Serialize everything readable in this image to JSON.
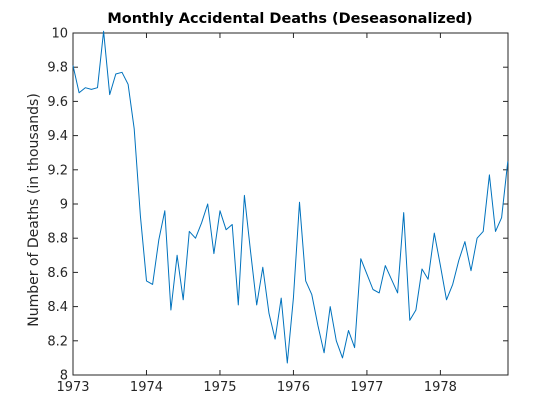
{
  "chart_data": {
    "type": "line",
    "title": "Monthly Accidental Deaths (Deseasonalized)",
    "xlabel": "",
    "ylabel": "Number of Deaths (in thousands)",
    "xlim": [
      1973.0,
      1978.92
    ],
    "ylim": [
      8,
      10
    ],
    "grid": false,
    "legend": "none",
    "x_ticks": [
      1973,
      1974,
      1975,
      1976,
      1977,
      1978
    ],
    "x_tick_labels": [
      "1973",
      "1974",
      "1975",
      "1976",
      "1977",
      "1978"
    ],
    "y_ticks": [
      8,
      8.2,
      8.4,
      8.6,
      8.8,
      9,
      9.2,
      9.4,
      9.6,
      9.8,
      10
    ],
    "y_tick_labels": [
      "8",
      "8.2",
      "8.4",
      "8.6",
      "8.8",
      "9",
      "9.2",
      "9.4",
      "9.6",
      "9.8",
      "10"
    ],
    "colors": {
      "series": "#0072BD",
      "axes": "#262626"
    },
    "series": [
      {
        "x": [
          1973.0,
          1973.083,
          1973.167,
          1973.25,
          1973.333,
          1973.417,
          1973.5,
          1973.583,
          1973.667,
          1973.75,
          1973.833,
          1973.917,
          1974.0,
          1974.083,
          1974.167,
          1974.25,
          1974.333,
          1974.417,
          1974.5,
          1974.583,
          1974.667,
          1974.75,
          1974.833,
          1974.917,
          1975.0,
          1975.083,
          1975.167,
          1975.25,
          1975.333,
          1975.417,
          1975.5,
          1975.583,
          1975.667,
          1975.75,
          1975.833,
          1975.917,
          1976.0,
          1976.083,
          1976.167,
          1976.25,
          1976.333,
          1976.417,
          1976.5,
          1976.583,
          1976.667,
          1976.75,
          1976.833,
          1976.917,
          1977.0,
          1977.083,
          1977.167,
          1977.25,
          1977.333,
          1977.417,
          1977.5,
          1977.583,
          1977.667,
          1977.75,
          1977.833,
          1977.917,
          1978.0,
          1978.083,
          1978.167,
          1978.25,
          1978.333,
          1978.417,
          1978.5,
          1978.583,
          1978.667,
          1978.75,
          1978.833,
          1978.917
        ],
        "values": [
          9.81,
          9.65,
          9.68,
          9.67,
          9.68,
          10.01,
          9.64,
          9.76,
          9.77,
          9.7,
          9.44,
          8.93,
          8.55,
          8.53,
          8.79,
          8.96,
          8.38,
          8.7,
          8.44,
          8.84,
          8.8,
          8.89,
          9.0,
          8.71,
          8.96,
          8.85,
          8.88,
          8.41,
          9.05,
          8.72,
          8.41,
          8.63,
          8.36,
          8.21,
          8.45,
          8.07,
          8.45,
          9.01,
          8.55,
          8.47,
          8.29,
          8.13,
          8.4,
          8.2,
          8.1,
          8.26,
          8.16,
          8.68,
          8.59,
          8.5,
          8.48,
          8.64,
          8.56,
          8.48,
          8.95,
          8.32,
          8.38,
          8.62,
          8.56,
          8.83,
          8.64,
          8.44,
          8.53,
          8.67,
          8.78,
          8.61,
          8.8,
          8.84,
          9.17,
          8.84,
          8.92,
          9.25
        ]
      }
    ]
  }
}
